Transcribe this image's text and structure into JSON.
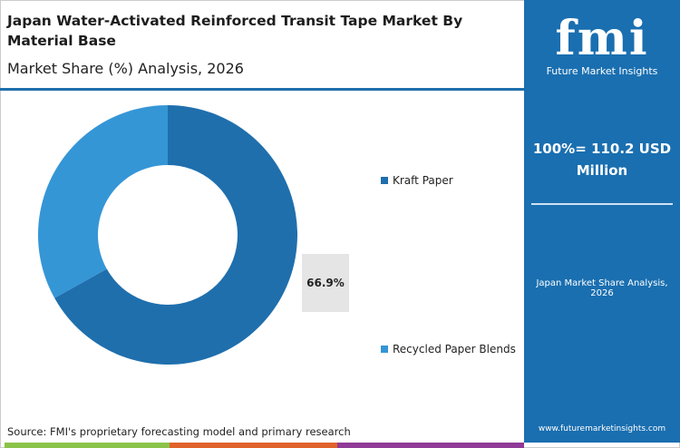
{
  "header": {
    "title": "Japan Water-Activated Reinforced Transit Tape Market By Material Base",
    "subtitle": "Market Share (%) Analysis, 2026"
  },
  "panel": {
    "logo_text": "fmi",
    "logo_sub": "Future Market Insights",
    "total": "100%= 110.2 USD Million",
    "caption": "Japan Market Share Analysis, 2026",
    "url": "www.futuremarketinsights.com"
  },
  "source": "Source: FMI's proprietary forecasting model and primary research",
  "colors": {
    "accent": "#1a6fb0",
    "bar": [
      "#8bc34a",
      "#e0622a",
      "#8e3a96"
    ]
  },
  "chart_data": {
    "type": "pie",
    "donut": true,
    "categories": [
      "Kraft Paper",
      "Recycled Paper Blends"
    ],
    "values": [
      66.9,
      33.1
    ],
    "colors": [
      "#1f6fad",
      "#3596d6"
    ],
    "data_labels": [
      "66.9%"
    ],
    "legend_placement": "right"
  }
}
